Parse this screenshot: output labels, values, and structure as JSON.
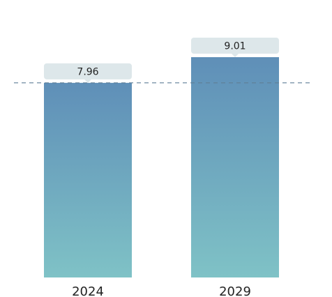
{
  "chart_data": {
    "type": "bar",
    "title": "",
    "xlabel": "",
    "ylabel": "",
    "categories": [
      "2024",
      "2029"
    ],
    "values": [
      7.96,
      9.01
    ],
    "value_labels": [
      "7.96",
      "9.01"
    ],
    "ylim": [
      0,
      9.01
    ],
    "reference_line": {
      "value": 7.96,
      "style": "dashed"
    },
    "grid": false,
    "legend": "none"
  },
  "colors": {
    "bar_top": "#5f8fb8",
    "bar_bottom": "#7fc2c6",
    "label_box": "#dde7ea",
    "reference_line": "#5f7f96",
    "text": "#222222"
  }
}
